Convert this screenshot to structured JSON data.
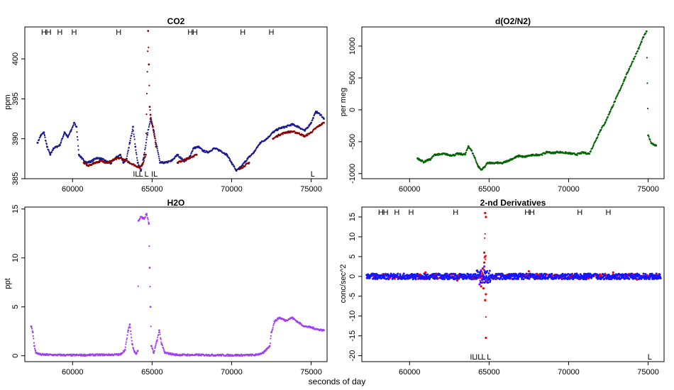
{
  "figure": {
    "x_label": "seconds of day"
  },
  "colors": {
    "co2_blue": "#1a1a8c",
    "co2_red": "#8b0000",
    "o2n2_green": "#006400",
    "h2o_purple": "#a040f0",
    "deriv_blue": "#1414ff",
    "deriv_red": "#ff0000",
    "deriv_purple": "#9d00ff"
  },
  "chart_data": [
    {
      "id": "co2",
      "type": "scatter",
      "title": "CO2",
      "ylabel": "ppm",
      "xlim": [
        57000,
        76000
      ],
      "ylim": [
        385,
        404
      ],
      "xticks": [
        60000,
        65000,
        70000,
        75000
      ],
      "yticks": [
        385,
        390,
        395,
        400
      ],
      "top_markers": [
        {
          "x": 58200,
          "label": "H"
        },
        {
          "x": 58500,
          "label": "H"
        },
        {
          "x": 59200,
          "label": "H"
        },
        {
          "x": 60100,
          "label": "H"
        },
        {
          "x": 62900,
          "label": "H"
        },
        {
          "x": 67400,
          "label": "H"
        },
        {
          "x": 67700,
          "label": "H"
        },
        {
          "x": 70700,
          "label": "H"
        },
        {
          "x": 72500,
          "label": "H"
        }
      ],
      "bottom_markers": [
        {
          "x": 64000,
          "label": "IL"
        },
        {
          "x": 64300,
          "label": "L"
        },
        {
          "x": 64650,
          "label": "L"
        },
        {
          "x": 65150,
          "label": "IL"
        },
        {
          "x": 75100,
          "label": "L"
        }
      ],
      "series": [
        {
          "color": "co2_blue",
          "points": [
            [
              57800,
              389.5
            ],
            [
              58000,
              390.4
            ],
            [
              58200,
              390.8
            ],
            [
              58400,
              389.0
            ],
            [
              58600,
              388.0
            ],
            [
              58800,
              388.8
            ],
            [
              59000,
              389.0
            ],
            [
              59200,
              389.2
            ],
            [
              59500,
              390.8
            ],
            [
              59700,
              390.2
            ],
            [
              59900,
              391.0
            ],
            [
              60100,
              392.0
            ],
            [
              60250,
              391.5
            ],
            [
              60400,
              388.0
            ],
            [
              60600,
              387.5
            ],
            [
              60900,
              387.0
            ],
            [
              61200,
              387.2
            ],
            [
              61500,
              387.6
            ],
            [
              61800,
              387.5
            ],
            [
              62100,
              387.2
            ],
            [
              62400,
              386.9
            ],
            [
              62700,
              387.6
            ],
            [
              63000,
              388.0
            ],
            [
              63200,
              387.0
            ],
            [
              63400,
              387.5
            ],
            [
              63600,
              389.5
            ],
            [
              63800,
              391.5
            ],
            [
              63950,
              389.0
            ],
            [
              64100,
              387.0
            ],
            [
              64300,
              386.0
            ],
            [
              64500,
              388.0
            ],
            [
              64700,
              390.5
            ],
            [
              64900,
              392.5
            ],
            [
              65100,
              391.0
            ],
            [
              65300,
              389.0
            ],
            [
              65500,
              387.0
            ],
            [
              65800,
              387.0
            ],
            [
              66200,
              387.2
            ],
            [
              66600,
              388.0
            ],
            [
              67000,
              387.2
            ],
            [
              67300,
              387.5
            ],
            [
              67600,
              388.8
            ],
            [
              67900,
              389.0
            ],
            [
              68200,
              388.5
            ],
            [
              68500,
              388.3
            ],
            [
              68900,
              388.8
            ],
            [
              69300,
              388.5
            ],
            [
              69700,
              388.0
            ],
            [
              70000,
              387.0
            ],
            [
              70300,
              386.0
            ],
            [
              70600,
              386.5
            ],
            [
              71000,
              387.5
            ],
            [
              71400,
              388.3
            ],
            [
              71800,
              389.5
            ],
            [
              72200,
              390.0
            ],
            [
              72600,
              390.8
            ],
            [
              73000,
              391.3
            ],
            [
              73400,
              391.5
            ],
            [
              73800,
              391.8
            ],
            [
              74200,
              391.5
            ],
            [
              74600,
              391.0
            ],
            [
              75000,
              392.0
            ],
            [
              75300,
              393.4
            ],
            [
              75600,
              393.0
            ],
            [
              75800,
              392.5
            ]
          ]
        },
        {
          "color": "co2_red",
          "points": [
            [
              60700,
              387.0
            ],
            [
              61000,
              386.6
            ],
            [
              61400,
              387.0
            ],
            [
              61800,
              387.2
            ],
            [
              62200,
              387.0
            ],
            [
              62600,
              387.4
            ],
            [
              63000,
              387.6
            ],
            [
              64200,
              386.4
            ],
            [
              64400,
              386.8
            ],
            [
              64600,
              388.0
            ],
            [
              64750,
              403.5
            ],
            [
              64800,
              399.3
            ],
            [
              64850,
              394.0
            ],
            [
              64900,
              393.0
            ],
            [
              65050,
              391.5
            ],
            [
              65250,
              389.0
            ],
            [
              66600,
              387.0
            ],
            [
              67800,
              388.0
            ],
            [
              70500,
              386.2
            ],
            [
              71100,
              387.0
            ],
            [
              72600,
              390.0
            ],
            [
              73000,
              390.5
            ],
            [
              73400,
              390.8
            ],
            [
              73800,
              390.9
            ],
            [
              74200,
              390.7
            ],
            [
              74600,
              390.3
            ],
            [
              75000,
              390.8
            ],
            [
              75400,
              391.5
            ],
            [
              75800,
              392.0
            ]
          ]
        }
      ]
    },
    {
      "id": "o2n2",
      "type": "scatter",
      "title": "d(O2/N2)",
      "ylabel": "per meg",
      "xlim": [
        57000,
        76000
      ],
      "ylim": [
        -1080,
        1300
      ],
      "xticks": [
        60000,
        65000,
        70000,
        75000
      ],
      "yticks": [
        -1000,
        -500,
        0,
        500,
        1000
      ],
      "series": [
        {
          "color": "o2n2_green",
          "points": [
            [
              60500,
              -760
            ],
            [
              60700,
              -790
            ],
            [
              60900,
              -820
            ],
            [
              61100,
              -790
            ],
            [
              61300,
              -780
            ],
            [
              61600,
              -700
            ],
            [
              61900,
              -700
            ],
            [
              62200,
              -690
            ],
            [
              62500,
              -710
            ],
            [
              62800,
              -710
            ],
            [
              63000,
              -690
            ],
            [
              63500,
              -700
            ],
            [
              63700,
              -570
            ],
            [
              63900,
              -640
            ],
            [
              64100,
              -750
            ],
            [
              64300,
              -880
            ],
            [
              64500,
              -940
            ],
            [
              64700,
              -900
            ],
            [
              64900,
              -830
            ],
            [
              65200,
              -840
            ],
            [
              65500,
              -830
            ],
            [
              65800,
              -840
            ],
            [
              66900,
              -720
            ],
            [
              67200,
              -740
            ],
            [
              67500,
              -720
            ],
            [
              67800,
              -710
            ],
            [
              68300,
              -700
            ],
            [
              68700,
              -660
            ],
            [
              69000,
              -680
            ],
            [
              69300,
              -660
            ],
            [
              70000,
              -680
            ],
            [
              70500,
              -700
            ],
            [
              70900,
              -670
            ],
            [
              71300,
              -690
            ],
            [
              72000,
              -320
            ],
            [
              72300,
              -200
            ],
            [
              72600,
              -30
            ],
            [
              72900,
              130
            ],
            [
              73200,
              300
            ],
            [
              73500,
              470
            ],
            [
              73800,
              640
            ],
            [
              74100,
              800
            ],
            [
              74400,
              960
            ],
            [
              74700,
              1140
            ],
            [
              74900,
              1230
            ],
            [
              75000,
              -400
            ],
            [
              75200,
              -520
            ],
            [
              75500,
              -560
            ]
          ]
        }
      ]
    },
    {
      "id": "h2o",
      "type": "scatter",
      "title": "H2O",
      "ylabel": "ppt",
      "xlim": [
        57000,
        76000
      ],
      "ylim": [
        -0.6,
        15.2
      ],
      "xticks": [
        60000,
        65000,
        70000,
        75000
      ],
      "yticks": [
        0,
        5,
        10,
        15
      ],
      "series": [
        {
          "color": "h2o_purple",
          "points": [
            [
              57400,
              3.0
            ],
            [
              57500,
              2.4
            ],
            [
              57600,
              1.0
            ],
            [
              57700,
              0.3
            ],
            [
              58000,
              0.12
            ],
            [
              59000,
              0.08
            ],
            [
              60000,
              0.06
            ],
            [
              61000,
              0.08
            ],
            [
              62000,
              0.1
            ],
            [
              63000,
              0.12
            ],
            [
              63300,
              0.6
            ],
            [
              63500,
              2.6
            ],
            [
              63600,
              3.2
            ],
            [
              63750,
              1.2
            ],
            [
              63900,
              0.4
            ],
            [
              64000,
              0.2
            ],
            [
              64100,
              0.5
            ],
            [
              64150,
              13.8
            ],
            [
              64300,
              14.2
            ],
            [
              64500,
              14.0
            ],
            [
              64650,
              14.5
            ],
            [
              64800,
              13.5
            ],
            [
              64850,
              9.0
            ],
            [
              64900,
              5.0
            ],
            [
              64950,
              1.0
            ],
            [
              65100,
              0.3
            ],
            [
              65300,
              1.5
            ],
            [
              65450,
              2.6
            ],
            [
              65600,
              1.2
            ],
            [
              65800,
              0.3
            ],
            [
              66500,
              0.1
            ],
            [
              67500,
              0.08
            ],
            [
              68500,
              0.08
            ],
            [
              69500,
              0.06
            ],
            [
              70500,
              0.06
            ],
            [
              71500,
              0.08
            ],
            [
              72000,
              0.3
            ],
            [
              72400,
              1.0
            ],
            [
              72500,
              2.4
            ],
            [
              72700,
              3.5
            ],
            [
              73000,
              3.9
            ],
            [
              73400,
              3.6
            ],
            [
              73800,
              3.9
            ],
            [
              74200,
              3.4
            ],
            [
              74600,
              3.0
            ],
            [
              75000,
              2.9
            ],
            [
              75400,
              2.7
            ],
            [
              75800,
              2.6
            ]
          ]
        }
      ]
    },
    {
      "id": "deriv",
      "type": "scatter",
      "title": "2-nd Derivatives",
      "ylabel": "conc/sec^2",
      "xlim": [
        57000,
        76000
      ],
      "ylim": [
        -21.5,
        17.5
      ],
      "xticks": [
        60000,
        65000,
        70000,
        75000
      ],
      "yticks": [
        -20,
        -15,
        -10,
        -5,
        0,
        5,
        10,
        15
      ],
      "top_markers": [
        {
          "x": 58200,
          "label": "H"
        },
        {
          "x": 58500,
          "label": "H"
        },
        {
          "x": 59200,
          "label": "H"
        },
        {
          "x": 60100,
          "label": "H"
        },
        {
          "x": 62900,
          "label": "H"
        },
        {
          "x": 67400,
          "label": "H"
        },
        {
          "x": 67700,
          "label": "H"
        },
        {
          "x": 70700,
          "label": "H"
        },
        {
          "x": 72500,
          "label": "H"
        }
      ],
      "bottom_markers": [
        {
          "x": 64000,
          "label": "IL"
        },
        {
          "x": 64350,
          "label": "IL"
        },
        {
          "x": 64650,
          "label": "L"
        },
        {
          "x": 65000,
          "label": "L"
        },
        {
          "x": 75100,
          "label": "L"
        }
      ],
      "series": [
        {
          "color": "deriv_red",
          "points": [
            [
              64750,
              16.0
            ],
            [
              64800,
              15.0
            ],
            [
              64700,
              6.0
            ],
            [
              64750,
              5.0
            ],
            [
              64700,
              3.5
            ],
            [
              64600,
              2.0
            ],
            [
              64500,
              -2.5
            ],
            [
              64650,
              -3.0
            ],
            [
              64800,
              -4.5
            ],
            [
              64750,
              -6.0
            ],
            [
              64800,
              -15.5
            ],
            [
              61000,
              1.0
            ],
            [
              63000,
              -1.0
            ],
            [
              67500,
              1.3
            ],
            [
              72800,
              1.0
            ],
            [
              74300,
              -0.8
            ]
          ]
        },
        {
          "color": "deriv_purple",
          "points": [
            [
              64400,
              -2.0
            ],
            [
              64500,
              1.5
            ],
            [
              64700,
              2.5
            ],
            [
              64600,
              -1.5
            ],
            [
              64800,
              -1.0
            ]
          ]
        }
      ]
    }
  ]
}
